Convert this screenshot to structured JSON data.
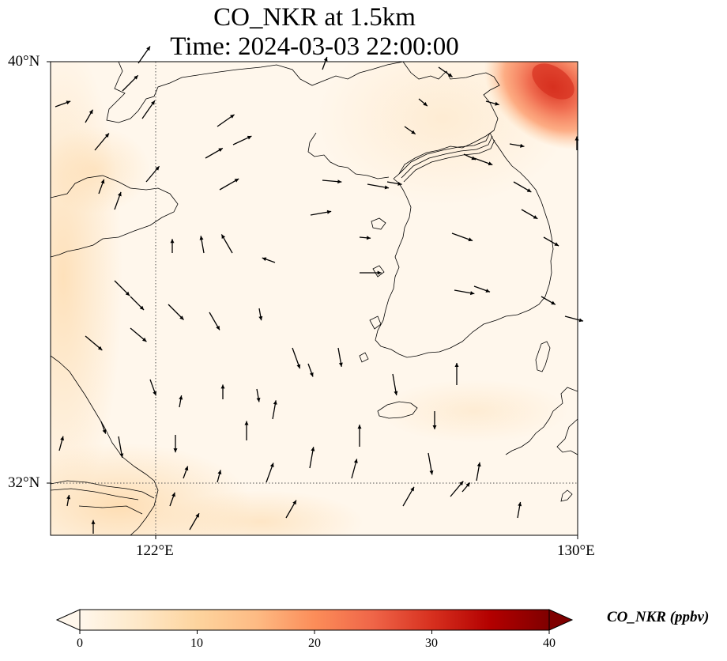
{
  "title": {
    "line1": "CO_NKR at 1.5km",
    "line2": "Time: 2024-03-03 22:00:00"
  },
  "map": {
    "projection": "PlateCarree",
    "lon_range": [
      121,
      130
    ],
    "lat_range": [
      31.1,
      40
    ],
    "gridlines": {
      "lon": [
        122
      ],
      "lat": [
        32
      ],
      "style": "dotted"
    },
    "lat_tick_labels": [
      "40°N",
      "32°N"
    ],
    "lon_tick_labels": [
      "122°E",
      "130°E"
    ],
    "coastline_color": "#000000",
    "field_description": "CO_NKR concentration field, mostly near zero; elevated plume in the upper-right corner (NE of Korea) and light enhancement along the left edge / China coast and lower-left",
    "wind_vectors_shown": true
  },
  "colorbar": {
    "label": "CO_NKR (ppbv)",
    "colormap": "OrRd",
    "extend": "both",
    "range": [
      0,
      40
    ],
    "ticks": [
      "0",
      "10",
      "20",
      "30",
      "40"
    ],
    "colors": [
      "#fff7ec",
      "#fee8c8",
      "#fdd49e",
      "#fdbb84",
      "#fc8d59",
      "#ef6548",
      "#d7301f",
      "#b30000",
      "#7f0000"
    ]
  }
}
